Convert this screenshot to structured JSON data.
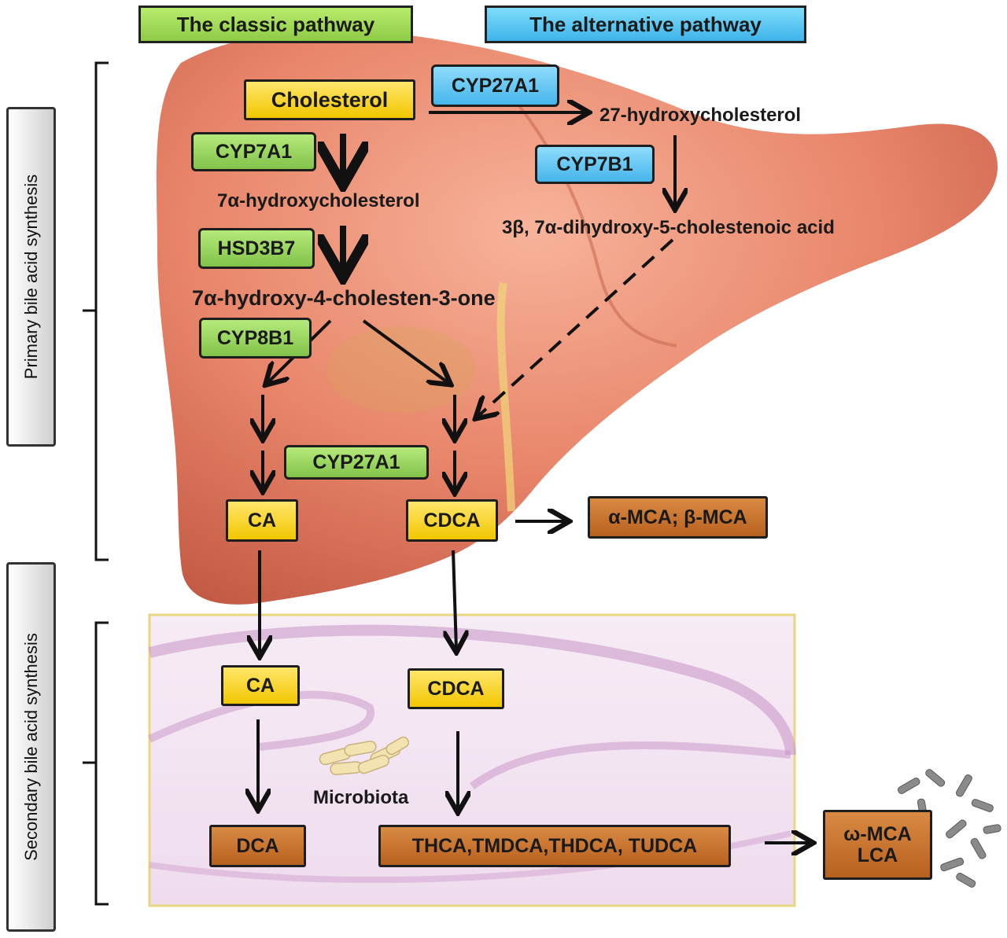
{
  "headers": {
    "classic": "The classic pathway",
    "alternative": "The alternative pathway"
  },
  "side_labels": {
    "primary": "Primary bile acid  synthesis",
    "secondary": "Secondary bile acid synthesis"
  },
  "metabolites": {
    "cholesterol": "Cholesterol",
    "hydroxychol27": "27-hydroxycholesterol",
    "hydroxychol7a": "7α-hydroxycholesterol",
    "dihydroxy_acid": "3β, 7α-dihydroxy-5-cholestenoic acid",
    "cholestenone": "7α-hydroxy-4-cholesten-3-one",
    "ca_primary": "CA",
    "cdca_primary": "CDCA",
    "mca": "α-MCA; β-MCA",
    "ca_secondary": "CA",
    "cdca_secondary": "CDCA",
    "dca": "DCA",
    "thca_group": "THCA,TMDCA,THDCA, TUDCA",
    "omega_mca_line1": "ω-MCA",
    "omega_mca_line2": "LCA",
    "microbiota": "Microbiota"
  },
  "enzymes": {
    "cyp27a1_alt": "CYP27A1",
    "cyp7a1": "CYP7A1",
    "cyp7b1": "CYP7B1",
    "hsd3b7": "HSD3B7",
    "cyp8b1": "CYP8B1",
    "cyp27a1_classic": "CYP27A1"
  },
  "colors": {
    "classic_green": "#8fcb47",
    "alternative_blue": "#3fb4ea",
    "primary_yellow": "#f2c600",
    "product_brown": "#b8611f",
    "liver": "#e6876a",
    "intestine": "#e3c9e3"
  }
}
